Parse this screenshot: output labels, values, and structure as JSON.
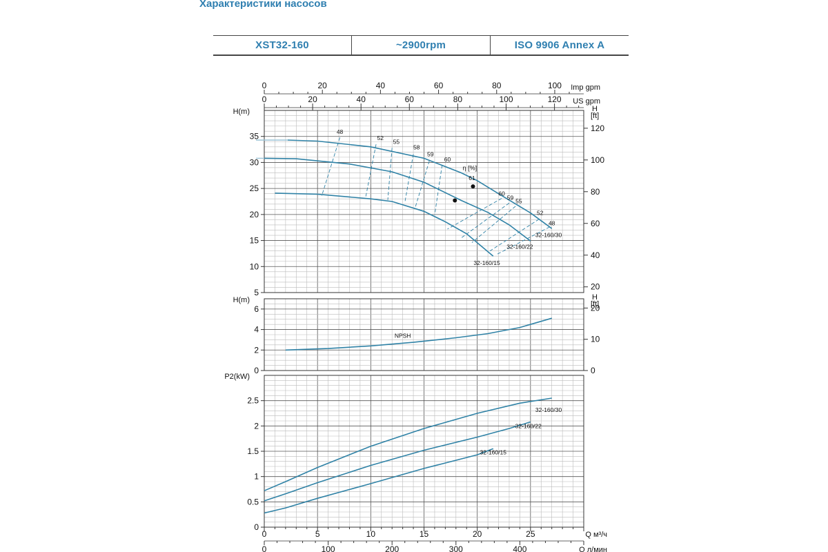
{
  "heading": "Характеристики насосов",
  "header_cells": [
    "XST32-160",
    "~2900rpm",
    "ISO 9906   Annex A"
  ],
  "colors": {
    "curve": "#2f82a6",
    "grid_major": "#555555",
    "grid_minor": "#bbbbbb",
    "heading": "#2f7fb0"
  },
  "chart_data": [
    {
      "type": "line",
      "name": "head",
      "ylabel": "H(m)",
      "y2label": "H [ft]",
      "ylim": [
        5,
        40
      ],
      "xlim": [
        0,
        30
      ],
      "yticks": [
        5,
        10,
        15,
        20,
        25,
        30,
        35
      ],
      "y2ticks": [
        20,
        40,
        60,
        80,
        100,
        120
      ],
      "top_axes": [
        {
          "unit": "Imp gpm",
          "ticks": [
            0,
            20,
            40,
            60,
            80,
            100
          ]
        },
        {
          "unit": "US gpm",
          "ticks": [
            0,
            20,
            40,
            60,
            80,
            100,
            120
          ]
        }
      ],
      "series": [
        {
          "name": "32-160/30",
          "points": [
            [
              2.2,
              34.3
            ],
            [
              5,
              34.1
            ],
            [
              10,
              33.0
            ],
            [
              15,
              30.8
            ],
            [
              18.5,
              28.0
            ],
            [
              20,
              26.5
            ],
            [
              22,
              24.0
            ],
            [
              25,
              20.3
            ],
            [
              27.0,
              17.3
            ]
          ]
        },
        {
          "name": "32-160/22",
          "points": [
            [
              0,
              30.8
            ],
            [
              3,
              30.7
            ],
            [
              8,
              29.7
            ],
            [
              12,
              28.2
            ],
            [
              15,
              26.2
            ],
            [
              18.5,
              22.7
            ],
            [
              21,
              20.4
            ],
            [
              23,
              18.0
            ],
            [
              25,
              14.9
            ]
          ]
        },
        {
          "name": "32-160/15",
          "points": [
            [
              1,
              24.1
            ],
            [
              5,
              23.9
            ],
            [
              10,
              23.0
            ],
            [
              12,
              22.5
            ],
            [
              15,
              20.6
            ],
            [
              17,
              18.6
            ],
            [
              19,
              16.3
            ],
            [
              21.5,
              12.0
            ]
          ]
        }
      ],
      "markers": [
        [
          19.6,
          25.4
        ],
        [
          17.9,
          22.7
        ]
      ],
      "efficiency_label": "η [%]",
      "efficiency_labels_left": [
        {
          "text": "48",
          "x": 7.1,
          "y": 35.5
        },
        {
          "text": "52",
          "x": 10.9,
          "y": 34.3
        },
        {
          "text": "55",
          "x": 12.4,
          "y": 33.6
        },
        {
          "text": "58",
          "x": 14.3,
          "y": 32.5
        },
        {
          "text": "59",
          "x": 15.6,
          "y": 31.2
        },
        {
          "text": "60",
          "x": 17.2,
          "y": 30.2
        },
        {
          "text": "61",
          "x": 19.5,
          "y": 26.6
        }
      ],
      "efficiency_labels_right": [
        {
          "text": "60",
          "x": 22.3,
          "y": 23.6
        },
        {
          "text": "59",
          "x": 23.1,
          "y": 22.8
        },
        {
          "text": "55",
          "x": 23.9,
          "y": 22.2
        },
        {
          "text": "52",
          "x": 25.9,
          "y": 19.9
        },
        {
          "text": "48",
          "x": 27.0,
          "y": 17.9
        }
      ],
      "efficiency_lines": [
        [
          [
            7.1,
            34.8
          ],
          [
            5.4,
            23.6
          ]
        ],
        [
          [
            10.5,
            33.5
          ],
          [
            9.5,
            23.1
          ]
        ],
        [
          [
            12.0,
            32.8
          ],
          [
            11.6,
            22.8
          ]
        ],
        [
          [
            14.0,
            31.6
          ],
          [
            13.2,
            22.3
          ]
        ],
        [
          [
            15.5,
            30.3
          ],
          [
            14.2,
            21.5
          ]
        ],
        [
          [
            16.7,
            29.5
          ],
          [
            16.0,
            19.9
          ]
        ],
        [
          [
            22.3,
            23.1
          ],
          [
            17.2,
            17.2
          ]
        ],
        [
          [
            23.0,
            22.2
          ],
          [
            18.5,
            15.5
          ]
        ],
        [
          [
            23.6,
            21.6
          ],
          [
            19.5,
            14.6
          ]
        ],
        [
          [
            25.8,
            19.1
          ],
          [
            21.2,
            13.0
          ]
        ],
        [
          [
            26.8,
            17.6
          ],
          [
            21.8,
            12.3
          ]
        ]
      ],
      "curve_labels": [
        {
          "text": "32-160/30",
          "x": 26.7,
          "y": 15.7
        },
        {
          "text": "32-160/22",
          "x": 24.0,
          "y": 13.4
        },
        {
          "text": "32-160/15",
          "x": 20.9,
          "y": 10.3
        }
      ]
    },
    {
      "type": "line",
      "name": "npsh",
      "ylabel": "H(m)",
      "y2label": "H [ft]",
      "ylim": [
        0,
        7
      ],
      "xlim": [
        0,
        30
      ],
      "yticks": [
        0,
        2,
        4,
        6
      ],
      "y2ticks": [
        0,
        10,
        20
      ],
      "series": [
        {
          "name": "NPSH",
          "points": [
            [
              2,
              2.0
            ],
            [
              6,
              2.15
            ],
            [
              10,
              2.4
            ],
            [
              14,
              2.75
            ],
            [
              18,
              3.2
            ],
            [
              21,
              3.6
            ],
            [
              24,
              4.2
            ],
            [
              27,
              5.1
            ]
          ]
        }
      ],
      "curve_labels": [
        {
          "text": "NPSH",
          "x": 13.0,
          "y": 3.2
        }
      ]
    },
    {
      "type": "line",
      "name": "power",
      "ylabel": "P2(kW)",
      "ylim": [
        0,
        3
      ],
      "xlim": [
        0,
        30
      ],
      "yticks": [
        0,
        0.5,
        1,
        1.5,
        2,
        2.5
      ],
      "x_axes": [
        {
          "unit": "Q  м³/ч",
          "ticks": [
            0,
            5,
            10,
            15,
            20,
            25
          ]
        },
        {
          "unit": "Q  л/мин",
          "ticks": [
            0,
            100,
            200,
            300,
            400
          ]
        }
      ],
      "series": [
        {
          "name": "32-160/30",
          "points": [
            [
              0,
              0.72
            ],
            [
              2,
              0.9
            ],
            [
              5,
              1.18
            ],
            [
              10,
              1.6
            ],
            [
              15,
              1.95
            ],
            [
              20,
              2.25
            ],
            [
              24,
              2.45
            ],
            [
              27,
              2.55
            ]
          ]
        },
        {
          "name": "32-160/22",
          "points": [
            [
              0,
              0.52
            ],
            [
              2,
              0.66
            ],
            [
              5,
              0.88
            ],
            [
              10,
              1.22
            ],
            [
              15,
              1.52
            ],
            [
              20,
              1.78
            ],
            [
              23,
              1.95
            ],
            [
              25,
              2.08
            ]
          ]
        },
        {
          "name": "32-160/15",
          "points": [
            [
              0,
              0.28
            ],
            [
              2,
              0.38
            ],
            [
              5,
              0.57
            ],
            [
              10,
              0.86
            ],
            [
              15,
              1.16
            ],
            [
              20,
              1.43
            ],
            [
              21.5,
              1.55
            ]
          ]
        }
      ],
      "curve_labels": [
        {
          "text": "32-160/30",
          "x": 26.7,
          "y": 2.28
        },
        {
          "text": "32-160/22",
          "x": 24.8,
          "y": 1.96
        },
        {
          "text": "32-160/15",
          "x": 21.5,
          "y": 1.44
        }
      ]
    }
  ]
}
